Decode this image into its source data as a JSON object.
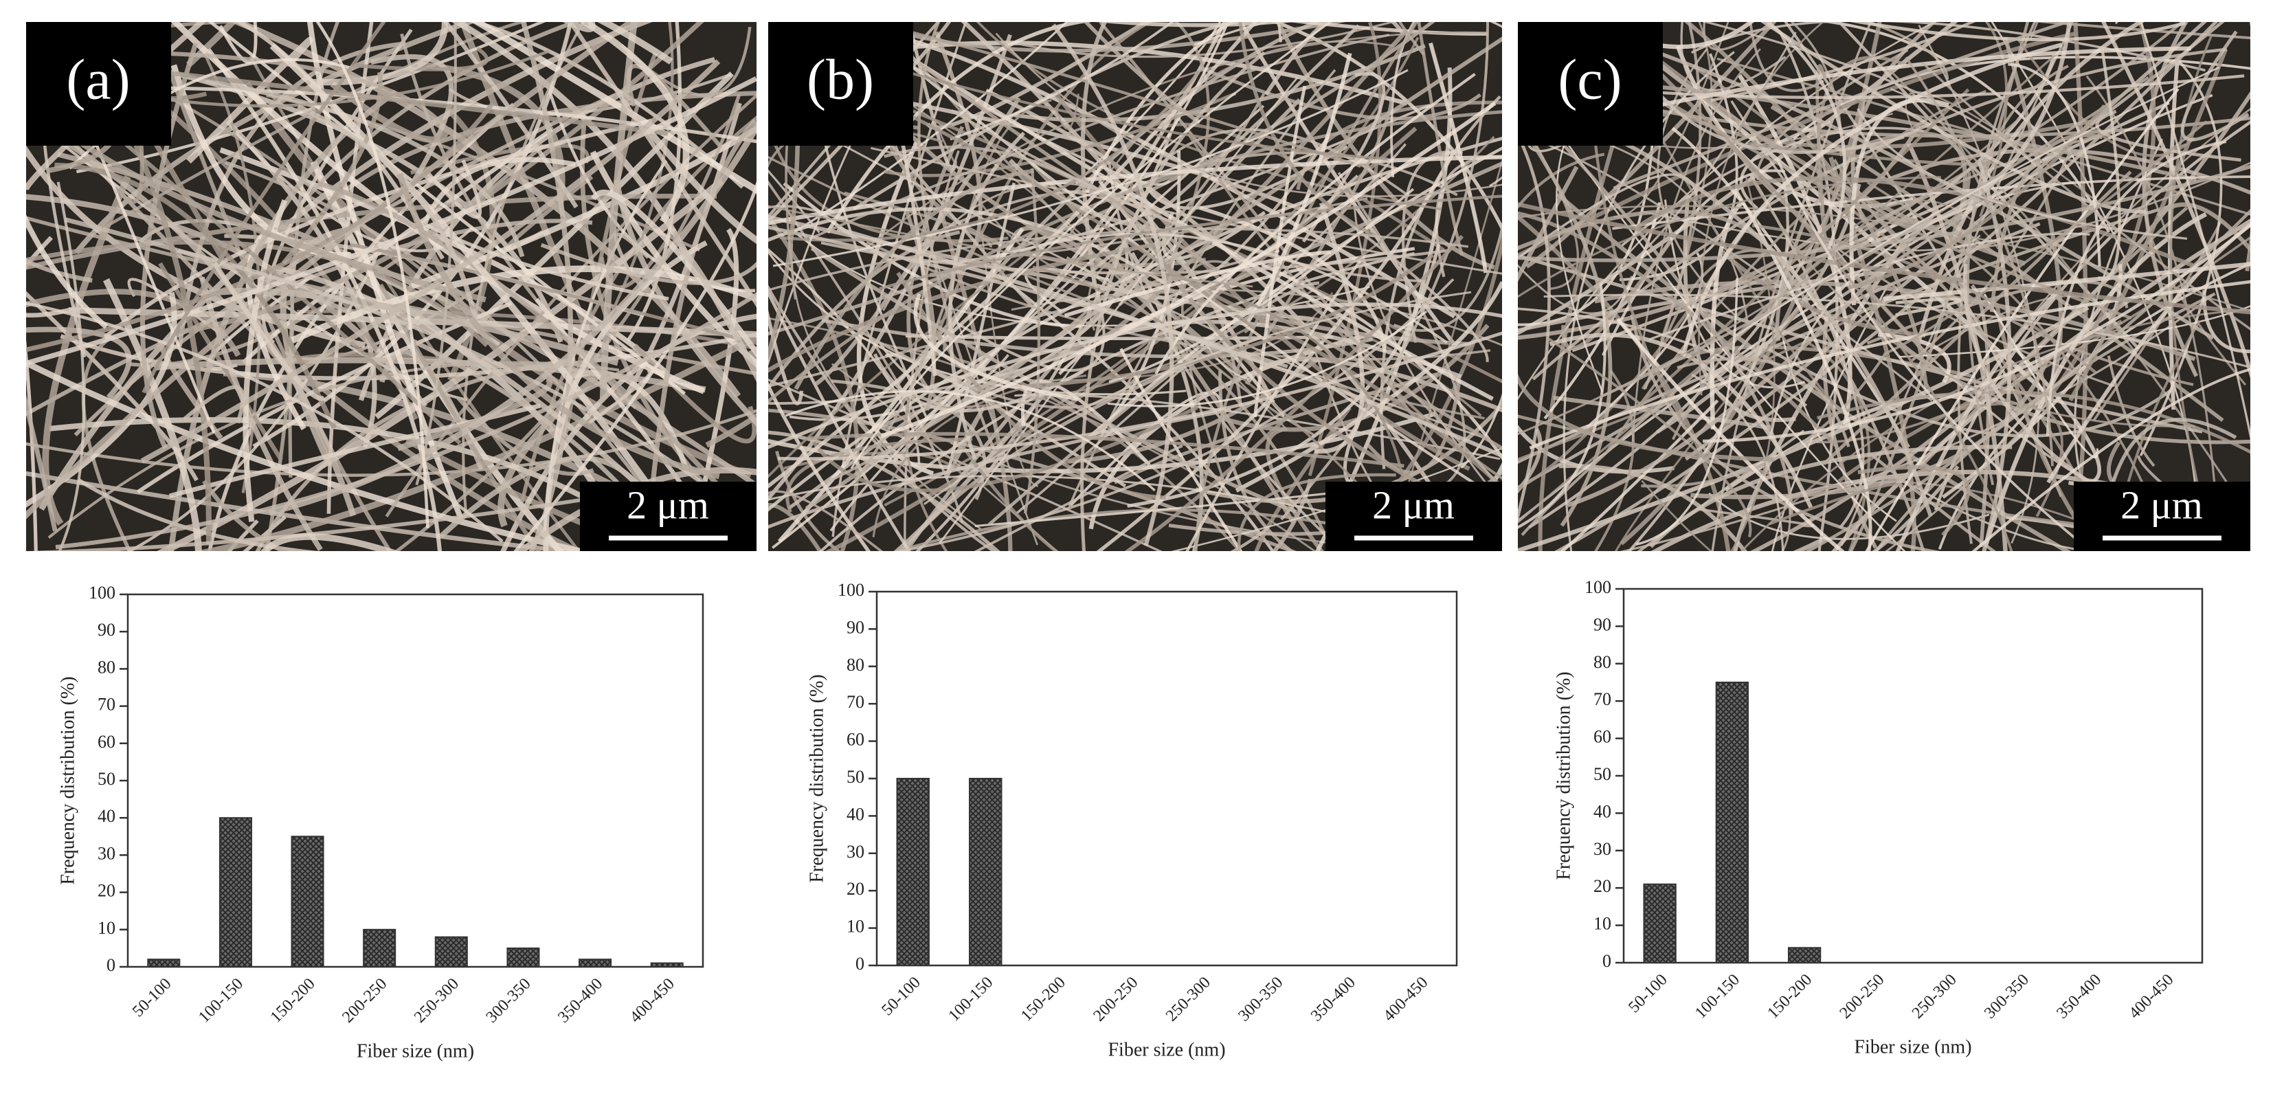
{
  "panels": [
    {
      "label": "(a)",
      "scale_bar": "2 μm"
    },
    {
      "label": "(b)",
      "scale_bar": "2 μm"
    },
    {
      "label": "(c)",
      "scale_bar": "2 μm"
    }
  ],
  "chart_data": [
    {
      "type": "bar",
      "xlabel": "Fiber size (nm)",
      "ylabel": "Frequency distribution (%)",
      "categories": [
        "50-100",
        "100-150",
        "150-200",
        "200-250",
        "250-300",
        "300-350",
        "350-400",
        "400-450"
      ],
      "values": [
        2,
        40,
        35,
        10,
        8,
        5,
        2,
        1
      ],
      "color": "#555555",
      "ylim": [
        0,
        100
      ],
      "yticks": [
        0,
        10,
        20,
        30,
        40,
        50,
        60,
        70,
        80,
        90,
        100
      ]
    },
    {
      "type": "bar",
      "xlabel": "Fiber size (nm)",
      "ylabel": "Frequency distribution (%)",
      "categories": [
        "50-100",
        "100-150",
        "150-200",
        "200-250",
        "250-300",
        "300-350",
        "350-400",
        "400-450"
      ],
      "values": [
        50,
        50,
        0,
        0,
        0,
        0,
        0,
        0
      ],
      "color": "#555555",
      "ylim": [
        0,
        100
      ],
      "yticks": [
        0,
        10,
        20,
        30,
        40,
        50,
        60,
        70,
        80,
        90,
        100
      ]
    },
    {
      "type": "bar",
      "xlabel": "Fiber size (nm)",
      "ylabel": "Frequency distribution (%)",
      "categories": [
        "50-100",
        "100-150",
        "150-200",
        "200-250",
        "250-300",
        "300-350",
        "350-400",
        "400-450"
      ],
      "values": [
        21,
        75,
        4,
        0,
        0,
        0,
        0,
        0
      ],
      "color": "#555555",
      "ylim": [
        0,
        100
      ],
      "yticks": [
        0,
        10,
        20,
        30,
        40,
        50,
        60,
        70,
        80,
        90,
        100
      ]
    }
  ]
}
